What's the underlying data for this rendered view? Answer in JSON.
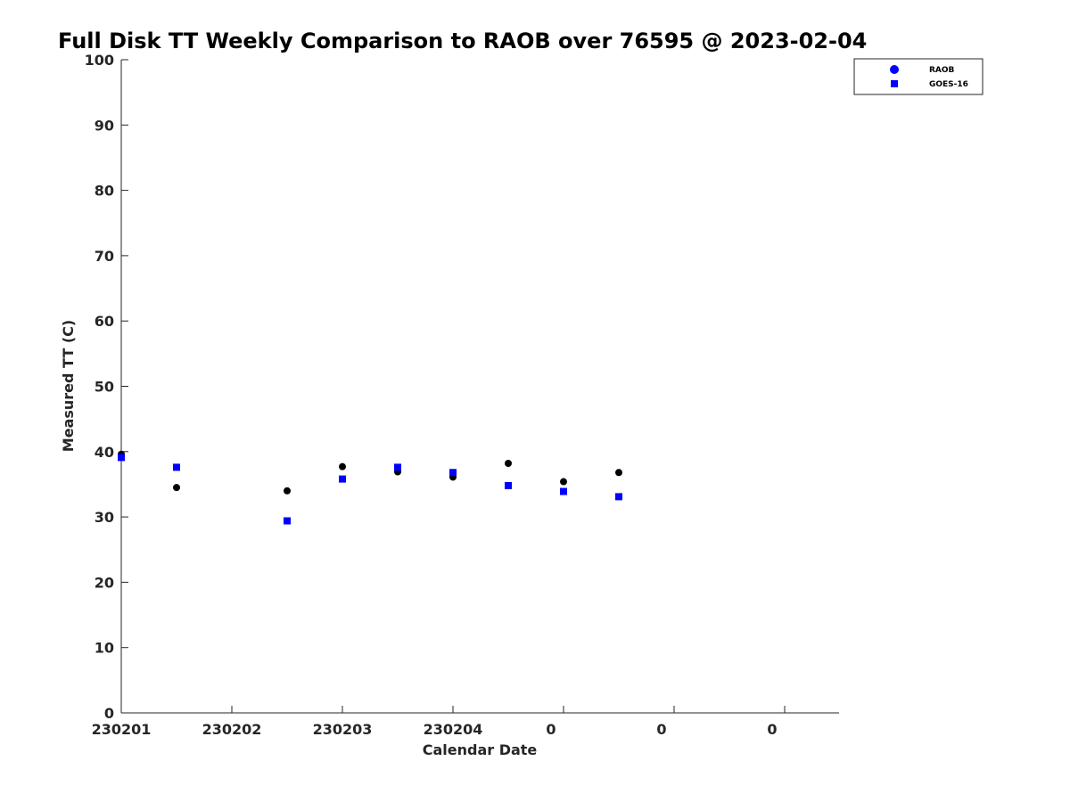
{
  "chart_data": {
    "type": "scatter",
    "title": "Full Disk TT Weekly Comparison to RAOB over 76595 @ 2023-02-04",
    "xlabel": "Calendar Date",
    "ylabel": "Measured TT (C)",
    "ylim": [
      0,
      100
    ],
    "yticks": [
      "0",
      "10",
      "20",
      "30",
      "40",
      "50",
      "60",
      "70",
      "80",
      "90",
      "100"
    ],
    "xlim": [
      0,
      6.5
    ],
    "xticks": [
      {
        "x": 0,
        "label": "230201"
      },
      {
        "x": 1,
        "label": "230202"
      },
      {
        "x": 2,
        "label": "230203"
      },
      {
        "x": 3,
        "label": "230204"
      },
      {
        "x": 4,
        "label": "0"
      },
      {
        "x": 5,
        "label": "0"
      },
      {
        "x": 6,
        "label": "0"
      }
    ],
    "grid": false,
    "legend_position": "top-right",
    "series": [
      {
        "name": "RAOB",
        "marker": "circle",
        "color": "#000000",
        "legend_color": "#0000ff",
        "points": [
          {
            "x": 0.0,
            "y": 39.6
          },
          {
            "x": 0.5,
            "y": 34.5
          },
          {
            "x": 1.5,
            "y": 34.0
          },
          {
            "x": 2.0,
            "y": 37.7
          },
          {
            "x": 2.5,
            "y": 36.9
          },
          {
            "x": 3.0,
            "y": 36.1
          },
          {
            "x": 3.5,
            "y": 38.2
          },
          {
            "x": 4.0,
            "y": 35.4
          },
          {
            "x": 4.5,
            "y": 36.8
          }
        ]
      },
      {
        "name": "GOES-16",
        "marker": "square",
        "color": "#0000ff",
        "legend_color": "#0000ff",
        "points": [
          {
            "x": 0.0,
            "y": 39.1
          },
          {
            "x": 0.5,
            "y": 37.6
          },
          {
            "x": 1.5,
            "y": 29.4
          },
          {
            "x": 2.0,
            "y": 35.8
          },
          {
            "x": 2.5,
            "y": 37.6
          },
          {
            "x": 3.0,
            "y": 36.8
          },
          {
            "x": 3.5,
            "y": 34.8
          },
          {
            "x": 4.0,
            "y": 33.9
          },
          {
            "x": 4.5,
            "y": 33.1
          }
        ]
      }
    ]
  }
}
